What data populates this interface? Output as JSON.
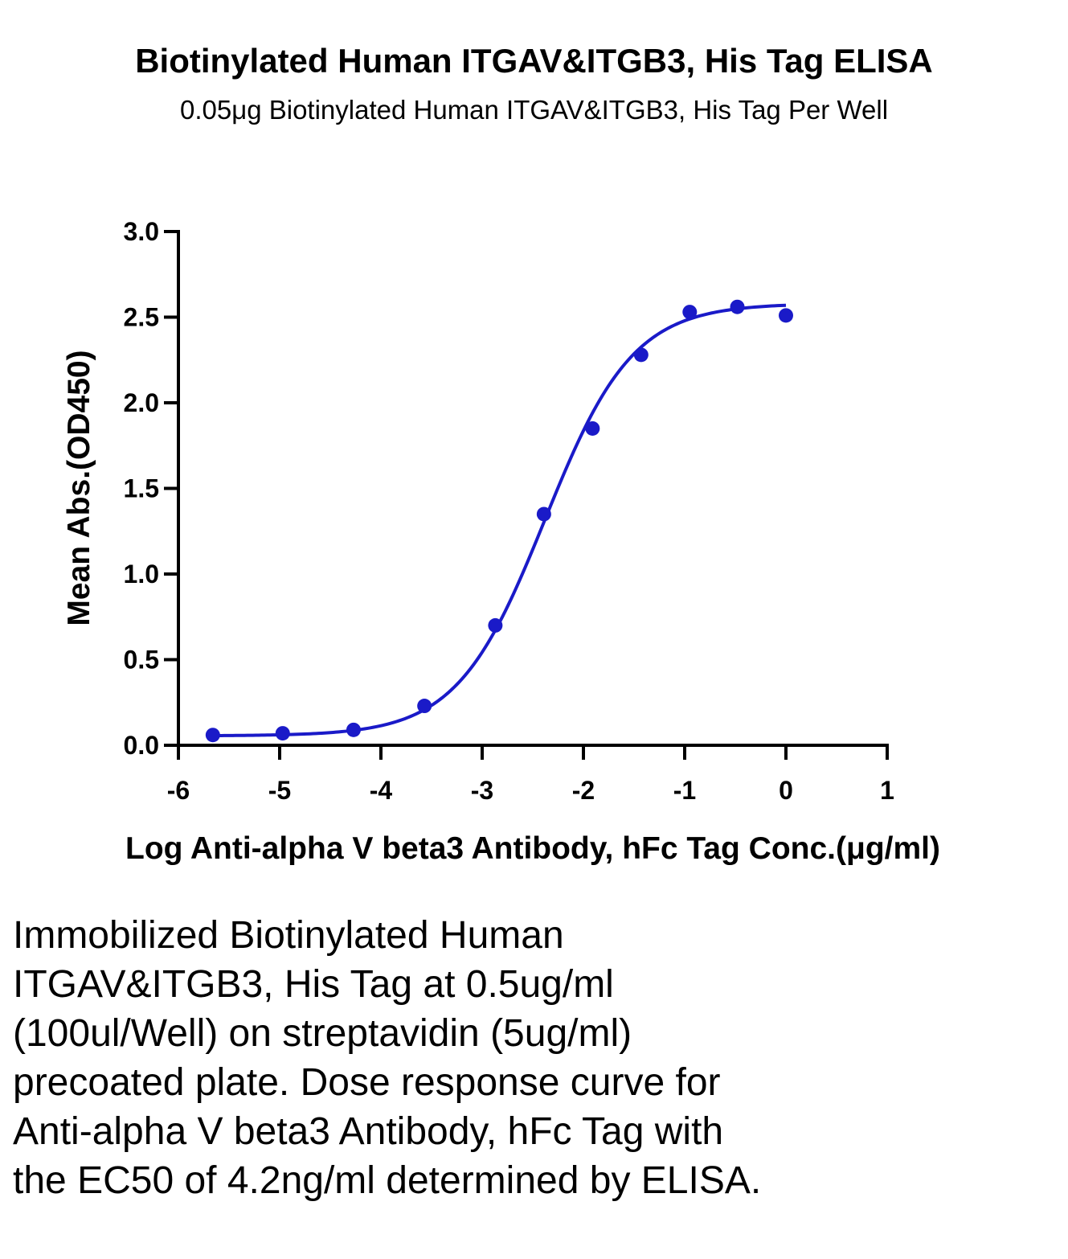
{
  "chart_data": {
    "type": "scatter",
    "title": "Biotinylated Human ITGAV&ITGB3, His Tag ELISA",
    "subtitle": "0.05μg Biotinylated Human ITGAV&ITGB3, His Tag Per Well",
    "xlabel": "Log Anti-alpha V beta3 Antibody, hFc Tag Conc.(μg/ml)",
    "ylabel": "Mean Abs.(OD450)",
    "xlim": [
      -6,
      1
    ],
    "ylim": [
      0,
      3.0
    ],
    "x_ticks": [
      -6,
      -5,
      -4,
      -3,
      -2,
      -1,
      0,
      1
    ],
    "x_tick_labels": [
      "-6",
      "-5",
      "-4",
      "-3",
      "-2",
      "-1",
      "0",
      "1"
    ],
    "y_ticks": [
      0,
      0.5,
      1.0,
      1.5,
      2.0,
      2.5,
      3.0
    ],
    "y_tick_labels": [
      "0.0",
      "0.5",
      "1.0",
      "1.5",
      "2.0",
      "2.5",
      "3.0"
    ],
    "grid": false,
    "point_color": "#1a1ac8",
    "curve_color": "#1a1ac8",
    "series": [
      {
        "x": [
          -5.66,
          -4.97,
          -4.27,
          -3.57,
          -2.87,
          -2.39,
          -1.91,
          -1.43,
          -0.95,
          -0.48,
          0.0
        ],
        "y": [
          0.06,
          0.07,
          0.09,
          0.23,
          0.7,
          1.35,
          1.85,
          2.28,
          2.53,
          2.56,
          2.51
        ]
      }
    ],
    "fit": {
      "model": "4PL",
      "bottom": 0.055,
      "top": 2.58,
      "log_ec50": -2.38,
      "hill": 1.0,
      "x_range": [
        -5.66,
        0.0
      ]
    }
  },
  "caption": "Immobilized Biotinylated Human ITGAV&ITGB3, His Tag at 0.5ug/ml (100ul/Well) on streptavidin (5ug/ml) precoated plate. Dose response curve for Anti-alpha V beta3 Antibody, hFc Tag with the EC50 of 4.2ng/ml determined by ELISA."
}
